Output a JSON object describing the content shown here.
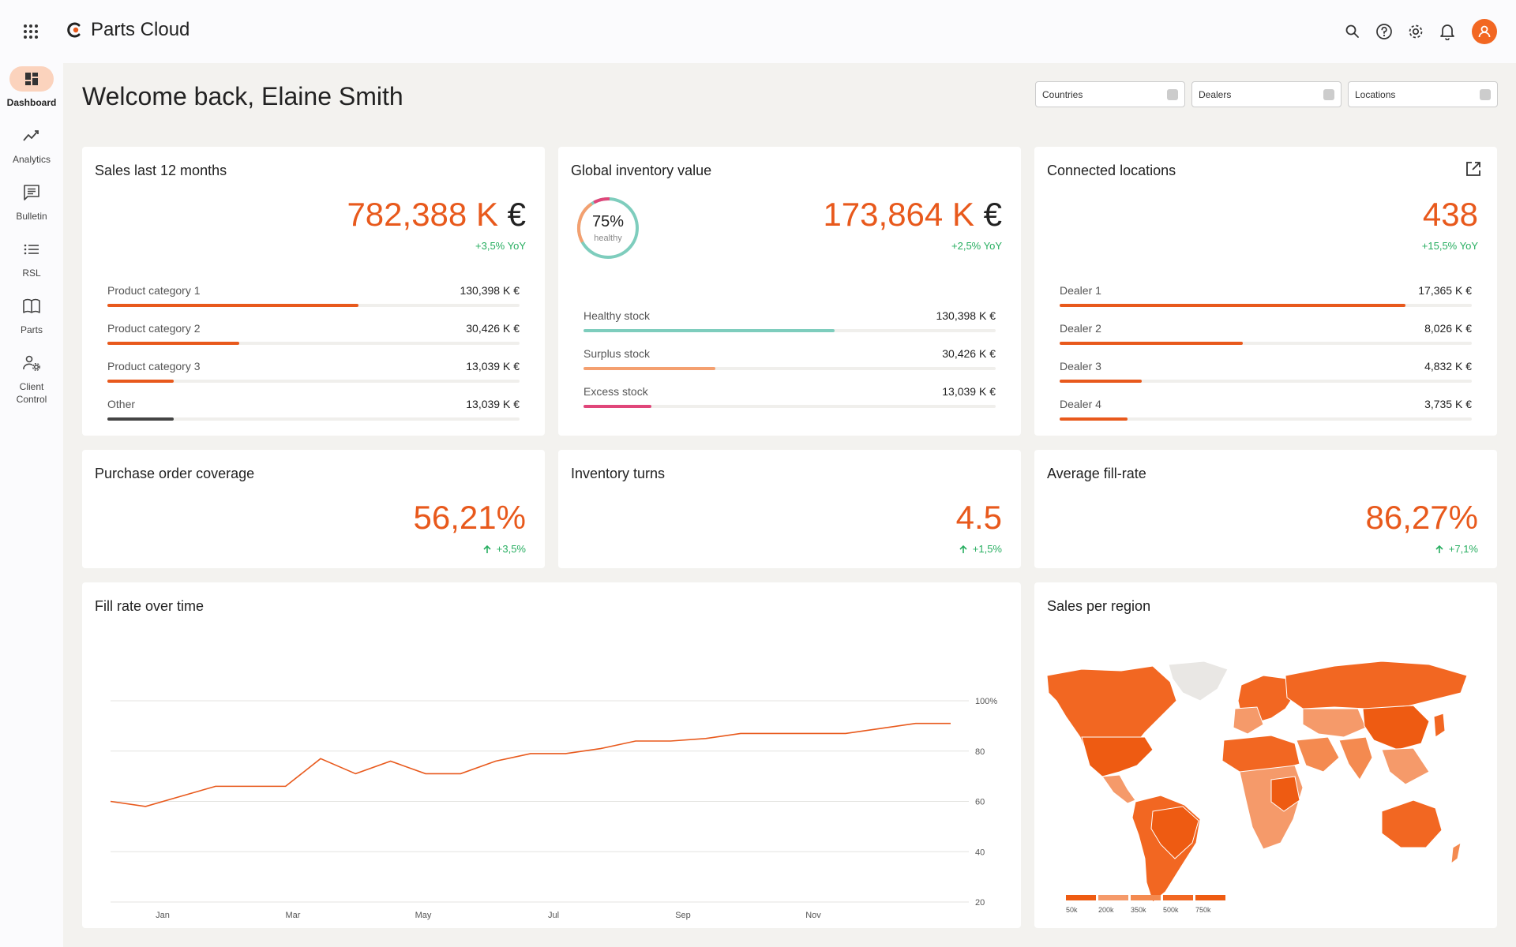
{
  "app": {
    "name": "Parts Cloud"
  },
  "colors": {
    "accent": "#e8591c",
    "positive": "#27ae60",
    "teal": "#7ecdbd",
    "salmon": "#f4a070",
    "pink": "#e0467a",
    "dark": "#444444"
  },
  "sidebar": {
    "items": [
      {
        "label": "Dashboard",
        "icon": "dashboard-icon",
        "active": true
      },
      {
        "label": "Analytics",
        "icon": "analytics-icon"
      },
      {
        "label": "Bulletin",
        "icon": "bulletin-icon"
      },
      {
        "label": "RSL",
        "icon": "list-icon"
      },
      {
        "label": "Parts",
        "icon": "book-icon"
      },
      {
        "label": "Client Control",
        "icon": "user-settings-icon"
      }
    ]
  },
  "header": {
    "welcome": "Welcome back, Elaine Smith"
  },
  "filters": {
    "countries": "Countries",
    "dealers": "Dealers",
    "locations": "Locations"
  },
  "sales": {
    "title": "Sales last 12 months",
    "value": "782,388 K",
    "currency": "€",
    "yoy": "+3,5% YoY",
    "rows": [
      {
        "label": "Product category 1",
        "value": "130,398 K €",
        "pct": 0.61
      },
      {
        "label": "Product category 2",
        "value": "30,426 K €",
        "pct": 0.32
      },
      {
        "label": "Product category 3",
        "value": "13,039 K €",
        "pct": 0.16
      },
      {
        "label": "Other",
        "value": "13,039 K €",
        "pct": 0.16
      }
    ]
  },
  "inventory": {
    "title": "Global inventory value",
    "gauge_value": "75%",
    "gauge_label": "healthy",
    "gauge_pct": 0.75,
    "value": "173,864 K",
    "currency": "€",
    "yoy": "+2,5% YoY",
    "rows": [
      {
        "label": "Healthy stock",
        "value": "130,398 K €",
        "pct": 0.61
      },
      {
        "label": "Surplus stock",
        "value": "30,426 K €",
        "pct": 0.32
      },
      {
        "label": "Excess stock",
        "value": "13,039 K €",
        "pct": 0.165
      }
    ]
  },
  "locations": {
    "title": "Connected locations",
    "value": "438",
    "yoy": "+15,5% YoY",
    "rows": [
      {
        "label": "Dealer 1",
        "value": "17,365 K €",
        "pct": 0.84
      },
      {
        "label": "Dealer 2",
        "value": "8,026 K €",
        "pct": 0.445
      },
      {
        "label": "Dealer 3",
        "value": "4,832 K €",
        "pct": 0.2
      },
      {
        "label": "Dealer 4",
        "value": "3,735 K €",
        "pct": 0.165
      }
    ]
  },
  "kpis": [
    {
      "title": "Purchase order coverage",
      "value": "56,21%",
      "delta": "+3,5%"
    },
    {
      "title": "Inventory turns",
      "value": "4.5",
      "delta": "+1,5%"
    },
    {
      "title": "Average fill-rate",
      "value": "86,27%",
      "delta": "+7,1%"
    }
  ],
  "chart_data": {
    "type": "line",
    "title": "Fill rate over time",
    "x_ticks": [
      "Jan",
      "Mar",
      "May",
      "Jul",
      "Sep",
      "Nov"
    ],
    "y_ticks": [
      "20",
      "40",
      "60",
      "80",
      "100%"
    ],
    "ylim": [
      20,
      100
    ],
    "grid": true,
    "series": [
      {
        "values": [
          60,
          58,
          62,
          66,
          66,
          66,
          77,
          71,
          76,
          71,
          71,
          76,
          79,
          79,
          81,
          84,
          84,
          85,
          87,
          87,
          87,
          87,
          89,
          91,
          91
        ]
      }
    ]
  },
  "map": {
    "title": "Sales per region",
    "legend": [
      "50k",
      "200k",
      "350k",
      "500k",
      "750k"
    ]
  }
}
